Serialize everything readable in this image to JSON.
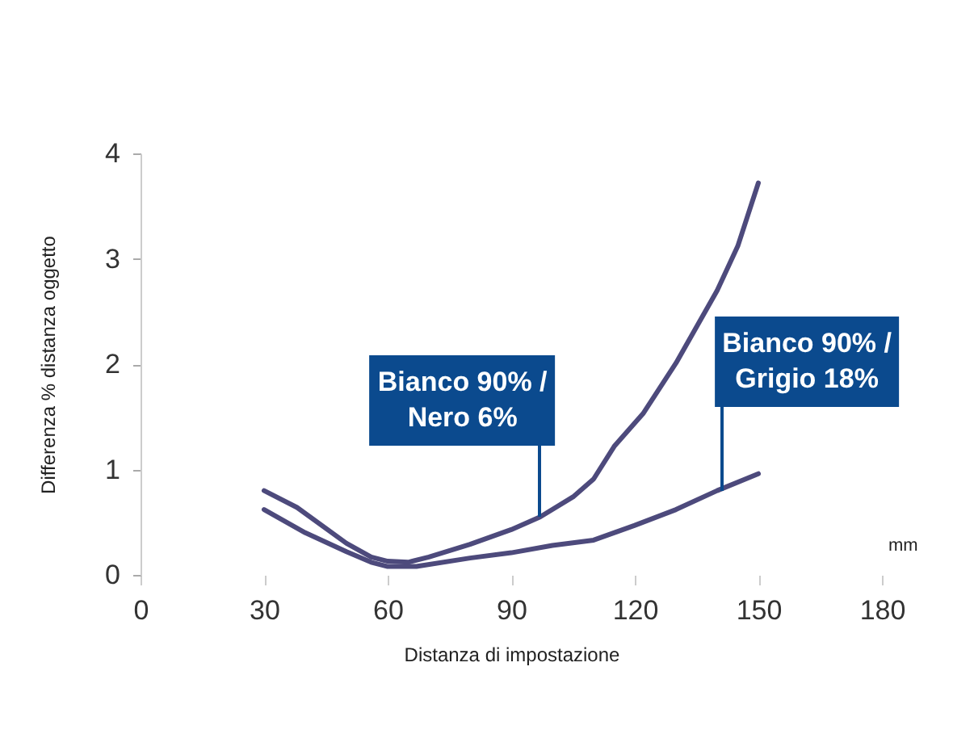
{
  "chart_data": {
    "type": "line",
    "xlabel": "Distanza di impostazione",
    "ylabel": "Differenza % distanza oggetto",
    "xlim": [
      0,
      180
    ],
    "xticks": [
      0,
      30,
      60,
      90,
      120,
      150,
      180
    ],
    "ylim": [
      0,
      4
    ],
    "yticks": [
      0,
      1,
      2,
      3,
      4
    ],
    "grid": false,
    "line_style": "solid",
    "series": [
      {
        "color": "#4d4a7c",
        "x": [
          30,
          38,
          50,
          56,
          60,
          65,
          70,
          80,
          90,
          97,
          105,
          110,
          115,
          122,
          130,
          140,
          145,
          150
        ],
        "values": [
          0.8,
          0.64,
          0.3,
          0.17,
          0.13,
          0.12,
          0.17,
          0.29,
          0.43,
          0.55,
          0.74,
          0.91,
          1.22,
          1.53,
          2.01,
          2.7,
          3.12,
          3.72
        ]
      },
      {
        "color": "#4d4a7c",
        "x": [
          30,
          40,
          50,
          56,
          60,
          67,
          80,
          90,
          100,
          110,
          120,
          130,
          140,
          150
        ],
        "values": [
          0.62,
          0.4,
          0.22,
          0.12,
          0.08,
          0.08,
          0.16,
          0.21,
          0.28,
          0.33,
          0.47,
          0.62,
          0.8,
          0.96
        ]
      }
    ],
    "annotations": [
      {
        "text": "Bianco 90% /\nNero 6%",
        "x": 97,
        "y": 0.55
      },
      {
        "text": "Bianco 90% /\nGrigio 18%",
        "x": 141,
        "y": 0.8
      },
      "mm"
    ]
  }
}
